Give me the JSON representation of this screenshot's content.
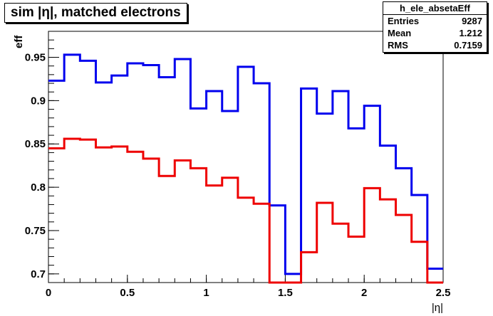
{
  "chart_data": {
    "type": "line",
    "style": "step-histogram",
    "title": "sim |η|, matched electrons",
    "xlabel": "|η|",
    "ylabel": "eff",
    "xlim": [
      0,
      2.5
    ],
    "ylim": [
      0.69,
      0.98
    ],
    "x_ticks": [
      0,
      0.5,
      1,
      1.5,
      2,
      2.5
    ],
    "x_tick_labels": [
      "0",
      "0.5",
      "1",
      "1.5",
      "2",
      "2.5"
    ],
    "y_ticks": [
      0.7,
      0.75,
      0.8,
      0.85,
      0.9,
      0.95
    ],
    "y_tick_labels": [
      "0.7",
      "0.75",
      "0.8",
      "0.85",
      "0.9",
      "0.95"
    ],
    "bin_edges": [
      0,
      0.1,
      0.2,
      0.3,
      0.4,
      0.5,
      0.6,
      0.7,
      0.8,
      0.9,
      1.0,
      1.1,
      1.2,
      1.3,
      1.4,
      1.5,
      1.6,
      1.7,
      1.8,
      1.9,
      2.0,
      2.1,
      2.2,
      2.3,
      2.4,
      2.5
    ],
    "series": [
      {
        "color": "#0000ee",
        "values": [
          0.923,
          0.953,
          0.946,
          0.921,
          0.929,
          0.943,
          0.941,
          0.927,
          0.948,
          0.891,
          0.911,
          0.888,
          0.939,
          0.92,
          0.779,
          0.7,
          0.914,
          0.885,
          0.911,
          0.868,
          0.894,
          0.848,
          0.822,
          0.791,
          0.706
        ]
      },
      {
        "color": "#ee0000",
        "values": [
          0.845,
          0.856,
          0.855,
          0.846,
          0.847,
          0.841,
          0.833,
          0.813,
          0.831,
          0.822,
          0.802,
          0.811,
          0.788,
          0.781,
          0.687,
          0.687,
          0.725,
          0.782,
          0.758,
          0.743,
          0.799,
          0.786,
          0.768,
          0.737,
          0.69
        ]
      }
    ],
    "grid": false,
    "stats": {
      "name": "h_ele_absetaEff",
      "rows": [
        {
          "label": "Entries",
          "value": "9287"
        },
        {
          "label": "Mean",
          "value": "1.212"
        },
        {
          "label": "RMS",
          "value": "0.7159"
        }
      ]
    }
  }
}
